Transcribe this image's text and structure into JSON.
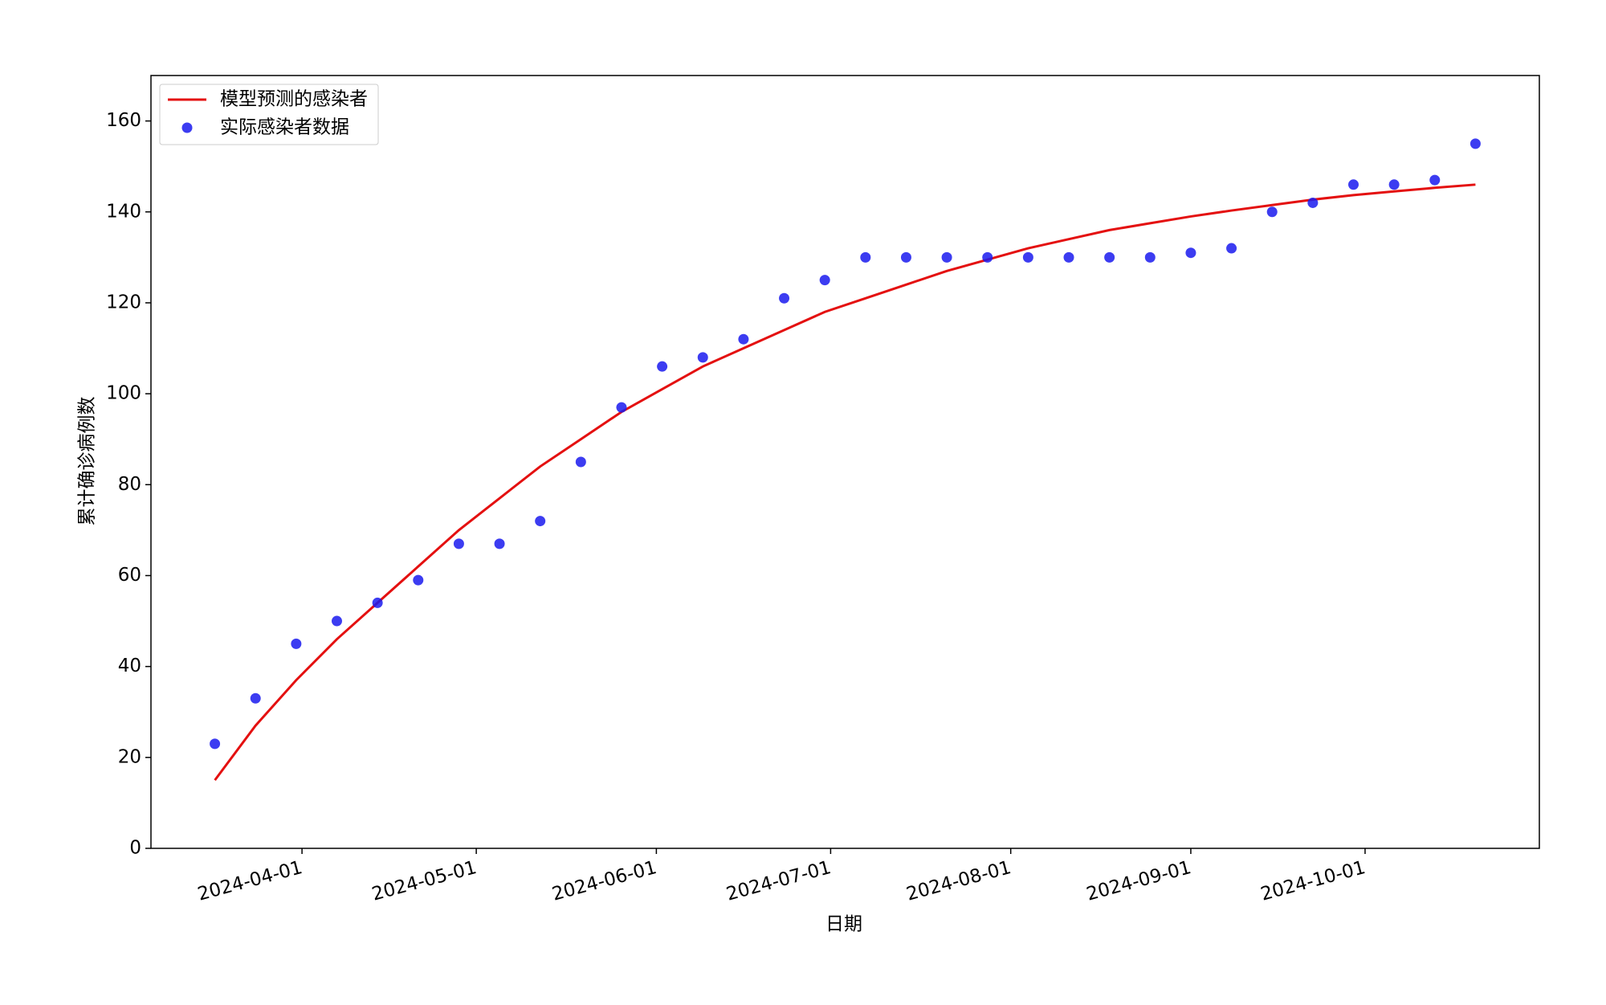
{
  "chart_data": {
    "type": "line",
    "x_label": "日期",
    "y_label": "累计确诊病例数",
    "x": [
      "2024-03-17",
      "2024-03-24",
      "2024-03-31",
      "2024-04-07",
      "2024-04-14",
      "2024-04-21",
      "2024-04-28",
      "2024-05-05",
      "2024-05-12",
      "2024-05-19",
      "2024-05-26",
      "2024-06-02",
      "2024-06-09",
      "2024-06-16",
      "2024-06-23",
      "2024-06-30",
      "2024-07-07",
      "2024-07-14",
      "2024-07-21",
      "2024-07-28",
      "2024-08-04",
      "2024-08-11",
      "2024-08-18",
      "2024-08-25",
      "2024-09-01",
      "2024-09-08",
      "2024-09-15",
      "2024-09-22",
      "2024-09-29",
      "2024-10-06",
      "2024-10-13",
      "2024-10-20"
    ],
    "series": [
      {
        "name": "模型预测的感染者",
        "type": "line",
        "color": "#e41010",
        "values": [
          15,
          27,
          37,
          46,
          54,
          62,
          70,
          77,
          84,
          90,
          96,
          101,
          106,
          110,
          114,
          118,
          121,
          124,
          127,
          129.5,
          132,
          134,
          136,
          137.5,
          139,
          140.3,
          141.5,
          142.7,
          143.7,
          144.5,
          145.3,
          146
        ]
      },
      {
        "name": "实际感染者数据",
        "type": "scatter",
        "color": "#1a1aee",
        "values": [
          23,
          33,
          45,
          50,
          54,
          59,
          67,
          67,
          72,
          85,
          97,
          106,
          108,
          112,
          121,
          125,
          130,
          130,
          130,
          130,
          130,
          130,
          130,
          130,
          131,
          132,
          140,
          142,
          146,
          146,
          147,
          155
        ]
      }
    ],
    "xlim": [
      "2024-03-06",
      "2024-10-31"
    ],
    "xticks": [
      "2024-04-01",
      "2024-05-01",
      "2024-06-01",
      "2024-07-01",
      "2024-08-01",
      "2024-09-01",
      "2024-10-01"
    ],
    "ylim": [
      0,
      170
    ],
    "yticks": [
      0,
      20,
      40,
      60,
      80,
      100,
      120,
      140,
      160
    ],
    "legend": "upper-left",
    "grid": false
  }
}
